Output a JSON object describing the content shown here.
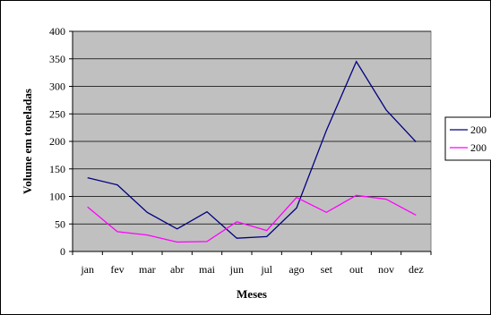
{
  "chart_data": {
    "type": "line",
    "title": "",
    "xlabel": "Meses",
    "ylabel": "Volume em toneladas",
    "categories": [
      "jan",
      "fev",
      "mar",
      "abr",
      "mai",
      "jun",
      "jul",
      "ago",
      "set",
      "out",
      "nov",
      "dez"
    ],
    "ylim": [
      0,
      400
    ],
    "yticks": [
      0,
      50,
      100,
      150,
      200,
      250,
      300,
      350,
      400
    ],
    "grid": "horizontal",
    "legend_position": "right",
    "plot_background": "#c0c0c0",
    "series": [
      {
        "name": "200",
        "color": "#000080",
        "values": [
          134,
          121,
          71,
          41,
          72,
          24,
          27,
          79,
          220,
          345,
          257,
          199
        ]
      },
      {
        "name": "200",
        "color": "#ff00ff",
        "values": [
          81,
          36,
          30,
          17,
          18,
          54,
          38,
          98,
          71,
          102,
          95,
          66
        ]
      }
    ]
  }
}
